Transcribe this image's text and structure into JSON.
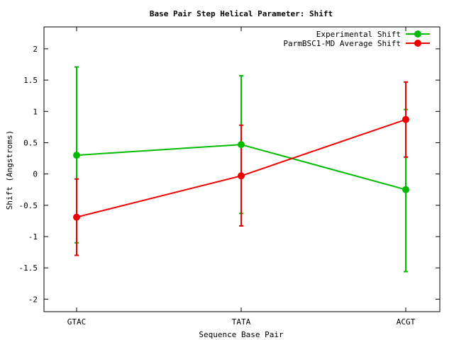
{
  "chart_data": {
    "type": "line",
    "title": "Base Pair Step Helical Parameter: Shift",
    "xlabel": "Sequence Base Pair",
    "ylabel": "Shift (Angstroms)",
    "categories": [
      "GTAC",
      "TATA",
      "ACGT"
    ],
    "ylim": [
      -2.2,
      2.35
    ],
    "yticks": [
      -2,
      -1.5,
      -1,
      -0.5,
      0,
      0.5,
      1,
      1.5,
      2
    ],
    "ytick_labels": [
      "-2",
      "-1.5",
      "-1",
      "-0.5",
      "0",
      "0.5",
      "1",
      "1.5",
      "2"
    ],
    "grid": false,
    "legend_position": "top-right",
    "series": [
      {
        "name": "Experimental Shift",
        "color": "#00bb00",
        "values": [
          0.3,
          0.47,
          -0.25
        ],
        "err_low": [
          -1.1,
          -0.63,
          -1.56
        ],
        "err_high": [
          1.71,
          1.57,
          1.03
        ]
      },
      {
        "name": "ParmBSC1-MD Average Shift",
        "color": "#ee0000",
        "values": [
          -0.69,
          -0.03,
          0.87
        ],
        "err_low": [
          -1.3,
          -0.83,
          0.27
        ],
        "err_high": [
          -0.08,
          0.78,
          1.47
        ]
      }
    ]
  }
}
